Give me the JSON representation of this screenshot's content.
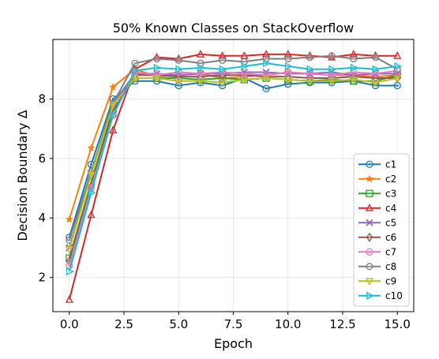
{
  "chart_data": {
    "type": "line",
    "title": "50% Known Classes on StackOverflow",
    "xlabel": "Epoch",
    "ylabel": "Decision Boundary Δ",
    "xlim": [
      -0.75,
      15.75
    ],
    "ylim": [
      0.85,
      10.0
    ],
    "xticks": [
      0.0,
      2.5,
      5.0,
      7.5,
      10.0,
      12.5,
      15.0
    ],
    "xtick_labels": [
      "0.0",
      "2.5",
      "5.0",
      "7.5",
      "10.0",
      "12.5",
      "15.0"
    ],
    "yticks": [
      2,
      4,
      6,
      8
    ],
    "ytick_labels": [
      "2",
      "4",
      "6",
      "8"
    ],
    "grid": true,
    "legend_position": "lower-right",
    "x": [
      0,
      1,
      2,
      3,
      4,
      5,
      6,
      7,
      8,
      9,
      10,
      11,
      12,
      13,
      14,
      15
    ],
    "series": [
      {
        "name": "c1",
        "color": "#1f77b4",
        "marker": "circle",
        "values": [
          3.35,
          5.8,
          8.0,
          8.6,
          8.6,
          8.45,
          8.55,
          8.45,
          8.7,
          8.35,
          8.5,
          8.55,
          8.55,
          8.6,
          8.45,
          8.45
        ]
      },
      {
        "name": "c2",
        "color": "#ff7f0e",
        "marker": "star",
        "values": [
          3.95,
          6.35,
          8.4,
          9.0,
          8.75,
          8.8,
          8.85,
          8.7,
          8.75,
          8.8,
          8.9,
          8.85,
          8.8,
          8.8,
          8.75,
          8.8
        ]
      },
      {
        "name": "c3",
        "color": "#2ca02c",
        "marker": "square",
        "values": [
          2.65,
          5.2,
          7.65,
          8.7,
          8.7,
          8.7,
          8.65,
          8.7,
          8.65,
          8.7,
          8.65,
          8.6,
          8.65,
          8.6,
          8.6,
          8.8
        ]
      },
      {
        "name": "c4",
        "color": "#d62728",
        "marker": "triangle-up",
        "values": [
          1.25,
          4.1,
          6.95,
          9.0,
          9.4,
          9.35,
          9.5,
          9.45,
          9.45,
          9.5,
          9.5,
          9.45,
          9.4,
          9.5,
          9.45,
          9.45
        ]
      },
      {
        "name": "c5",
        "color": "#9467bd",
        "marker": "x",
        "values": [
          3.0,
          5.5,
          7.85,
          8.85,
          8.85,
          8.8,
          8.85,
          8.85,
          8.9,
          8.9,
          8.85,
          8.85,
          8.9,
          8.8,
          8.85,
          8.85
        ]
      },
      {
        "name": "c6",
        "color": "#8c564b",
        "marker": "diamond",
        "values": [
          2.55,
          5.05,
          7.6,
          8.8,
          8.8,
          8.75,
          8.75,
          8.8,
          8.8,
          8.75,
          8.75,
          8.7,
          8.7,
          8.75,
          8.7,
          8.7
        ]
      },
      {
        "name": "c7",
        "color": "#e377c2",
        "marker": "circle",
        "values": [
          2.4,
          5.0,
          7.45,
          8.9,
          8.8,
          8.9,
          8.85,
          8.9,
          8.85,
          8.8,
          8.9,
          8.85,
          8.8,
          8.9,
          8.85,
          8.95
        ]
      },
      {
        "name": "c8",
        "color": "#7f7f7f",
        "marker": "octagon",
        "values": [
          3.25,
          5.55,
          7.85,
          9.2,
          9.35,
          9.3,
          9.2,
          9.3,
          9.25,
          9.35,
          9.35,
          9.4,
          9.45,
          9.35,
          9.4,
          9.0
        ]
      },
      {
        "name": "c9",
        "color": "#bcbd22",
        "marker": "triangle-down",
        "values": [
          2.95,
          5.45,
          7.8,
          8.7,
          8.7,
          8.6,
          8.6,
          8.55,
          8.65,
          8.7,
          8.65,
          8.6,
          8.6,
          8.65,
          8.55,
          8.7
        ]
      },
      {
        "name": "c10",
        "color": "#17becf",
        "marker": "triangle-right",
        "values": [
          2.2,
          4.85,
          7.45,
          8.95,
          9.05,
          9.0,
          9.05,
          9.0,
          9.1,
          9.2,
          9.1,
          9.0,
          9.0,
          9.05,
          9.0,
          9.1
        ]
      }
    ]
  }
}
